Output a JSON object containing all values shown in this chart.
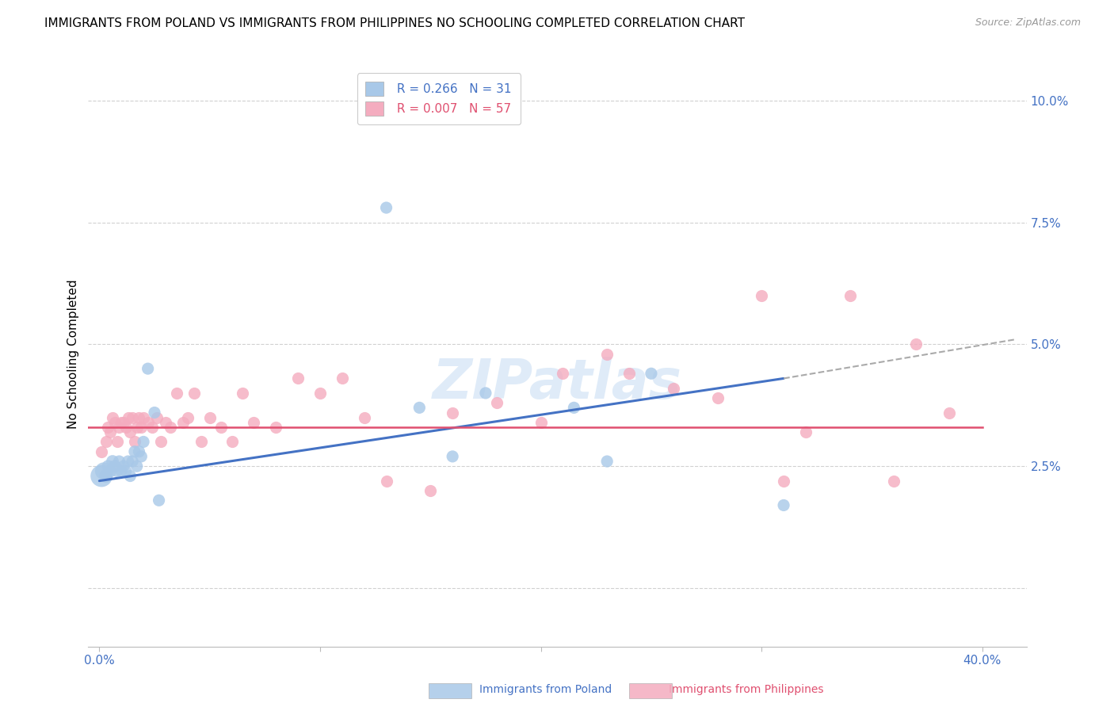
{
  "title": "IMMIGRANTS FROM POLAND VS IMMIGRANTS FROM PHILIPPINES NO SCHOOLING COMPLETED CORRELATION CHART",
  "source": "Source: ZipAtlas.com",
  "ylabel": "No Schooling Completed",
  "ytick_vals": [
    0.0,
    0.025,
    0.05,
    0.075,
    0.1
  ],
  "ytick_labels": [
    "",
    "2.5%",
    "5.0%",
    "7.5%",
    "10.0%"
  ],
  "xtick_vals": [
    0.0,
    0.1,
    0.2,
    0.3,
    0.4
  ],
  "xtick_labels": [
    "0.0%",
    "",
    "",
    "",
    "40.0%"
  ],
  "xlim": [
    -0.005,
    0.42
  ],
  "ylim": [
    -0.012,
    0.108
  ],
  "legend_poland_R": "0.266",
  "legend_poland_N": "31",
  "legend_phil_R": "0.007",
  "legend_phil_N": "57",
  "poland_color": "#A8C8E8",
  "philippines_color": "#F4ACBF",
  "trend_poland_color": "#4472C4",
  "trend_phil_color": "#E05070",
  "background_color": "#FFFFFF",
  "grid_color": "#CCCCCC",
  "poland_x": [
    0.001,
    0.002,
    0.003,
    0.004,
    0.005,
    0.006,
    0.007,
    0.008,
    0.009,
    0.01,
    0.011,
    0.012,
    0.013,
    0.014,
    0.015,
    0.016,
    0.017,
    0.018,
    0.019,
    0.02,
    0.022,
    0.025,
    0.027,
    0.13,
    0.145,
    0.16,
    0.175,
    0.215,
    0.23,
    0.25,
    0.31
  ],
  "poland_y": [
    0.023,
    0.024,
    0.023,
    0.025,
    0.024,
    0.026,
    0.025,
    0.024,
    0.026,
    0.024,
    0.025,
    0.024,
    0.026,
    0.023,
    0.026,
    0.028,
    0.025,
    0.028,
    0.027,
    0.03,
    0.045,
    0.036,
    0.018,
    0.078,
    0.037,
    0.027,
    0.04,
    0.037,
    0.026,
    0.044,
    0.017
  ],
  "poland_sizes": [
    400,
    250,
    150,
    130,
    130,
    130,
    130,
    120,
    120,
    120,
    120,
    120,
    120,
    120,
    120,
    120,
    120,
    120,
    120,
    120,
    120,
    120,
    120,
    120,
    120,
    120,
    120,
    120,
    120,
    120,
    120
  ],
  "phil_x": [
    0.001,
    0.003,
    0.004,
    0.005,
    0.006,
    0.007,
    0.008,
    0.009,
    0.01,
    0.011,
    0.012,
    0.013,
    0.014,
    0.015,
    0.016,
    0.017,
    0.018,
    0.019,
    0.02,
    0.022,
    0.024,
    0.026,
    0.028,
    0.03,
    0.032,
    0.035,
    0.038,
    0.04,
    0.043,
    0.046,
    0.05,
    0.055,
    0.06,
    0.065,
    0.07,
    0.08,
    0.09,
    0.1,
    0.11,
    0.12,
    0.13,
    0.15,
    0.16,
    0.18,
    0.2,
    0.21,
    0.23,
    0.24,
    0.26,
    0.28,
    0.3,
    0.31,
    0.32,
    0.34,
    0.36,
    0.37,
    0.385
  ],
  "phil_y": [
    0.028,
    0.03,
    0.033,
    0.032,
    0.035,
    0.034,
    0.03,
    0.033,
    0.034,
    0.034,
    0.033,
    0.035,
    0.032,
    0.035,
    0.03,
    0.033,
    0.035,
    0.033,
    0.035,
    0.034,
    0.033,
    0.035,
    0.03,
    0.034,
    0.033,
    0.04,
    0.034,
    0.035,
    0.04,
    0.03,
    0.035,
    0.033,
    0.03,
    0.04,
    0.034,
    0.033,
    0.043,
    0.04,
    0.043,
    0.035,
    0.022,
    0.02,
    0.036,
    0.038,
    0.034,
    0.044,
    0.048,
    0.044,
    0.041,
    0.039,
    0.06,
    0.022,
    0.032,
    0.06,
    0.022,
    0.05,
    0.036
  ],
  "trend_poland_x0": 0.0,
  "trend_poland_y0": 0.022,
  "trend_poland_x1": 0.31,
  "trend_poland_y1": 0.043,
  "trend_poland_dash_x0": 0.31,
  "trend_poland_dash_y0": 0.043,
  "trend_poland_dash_x1": 0.415,
  "trend_poland_dash_y1": 0.051,
  "trend_phil_y": 0.033,
  "title_fontsize": 11,
  "axis_label_fontsize": 11,
  "tick_fontsize": 11,
  "legend_fontsize": 11
}
